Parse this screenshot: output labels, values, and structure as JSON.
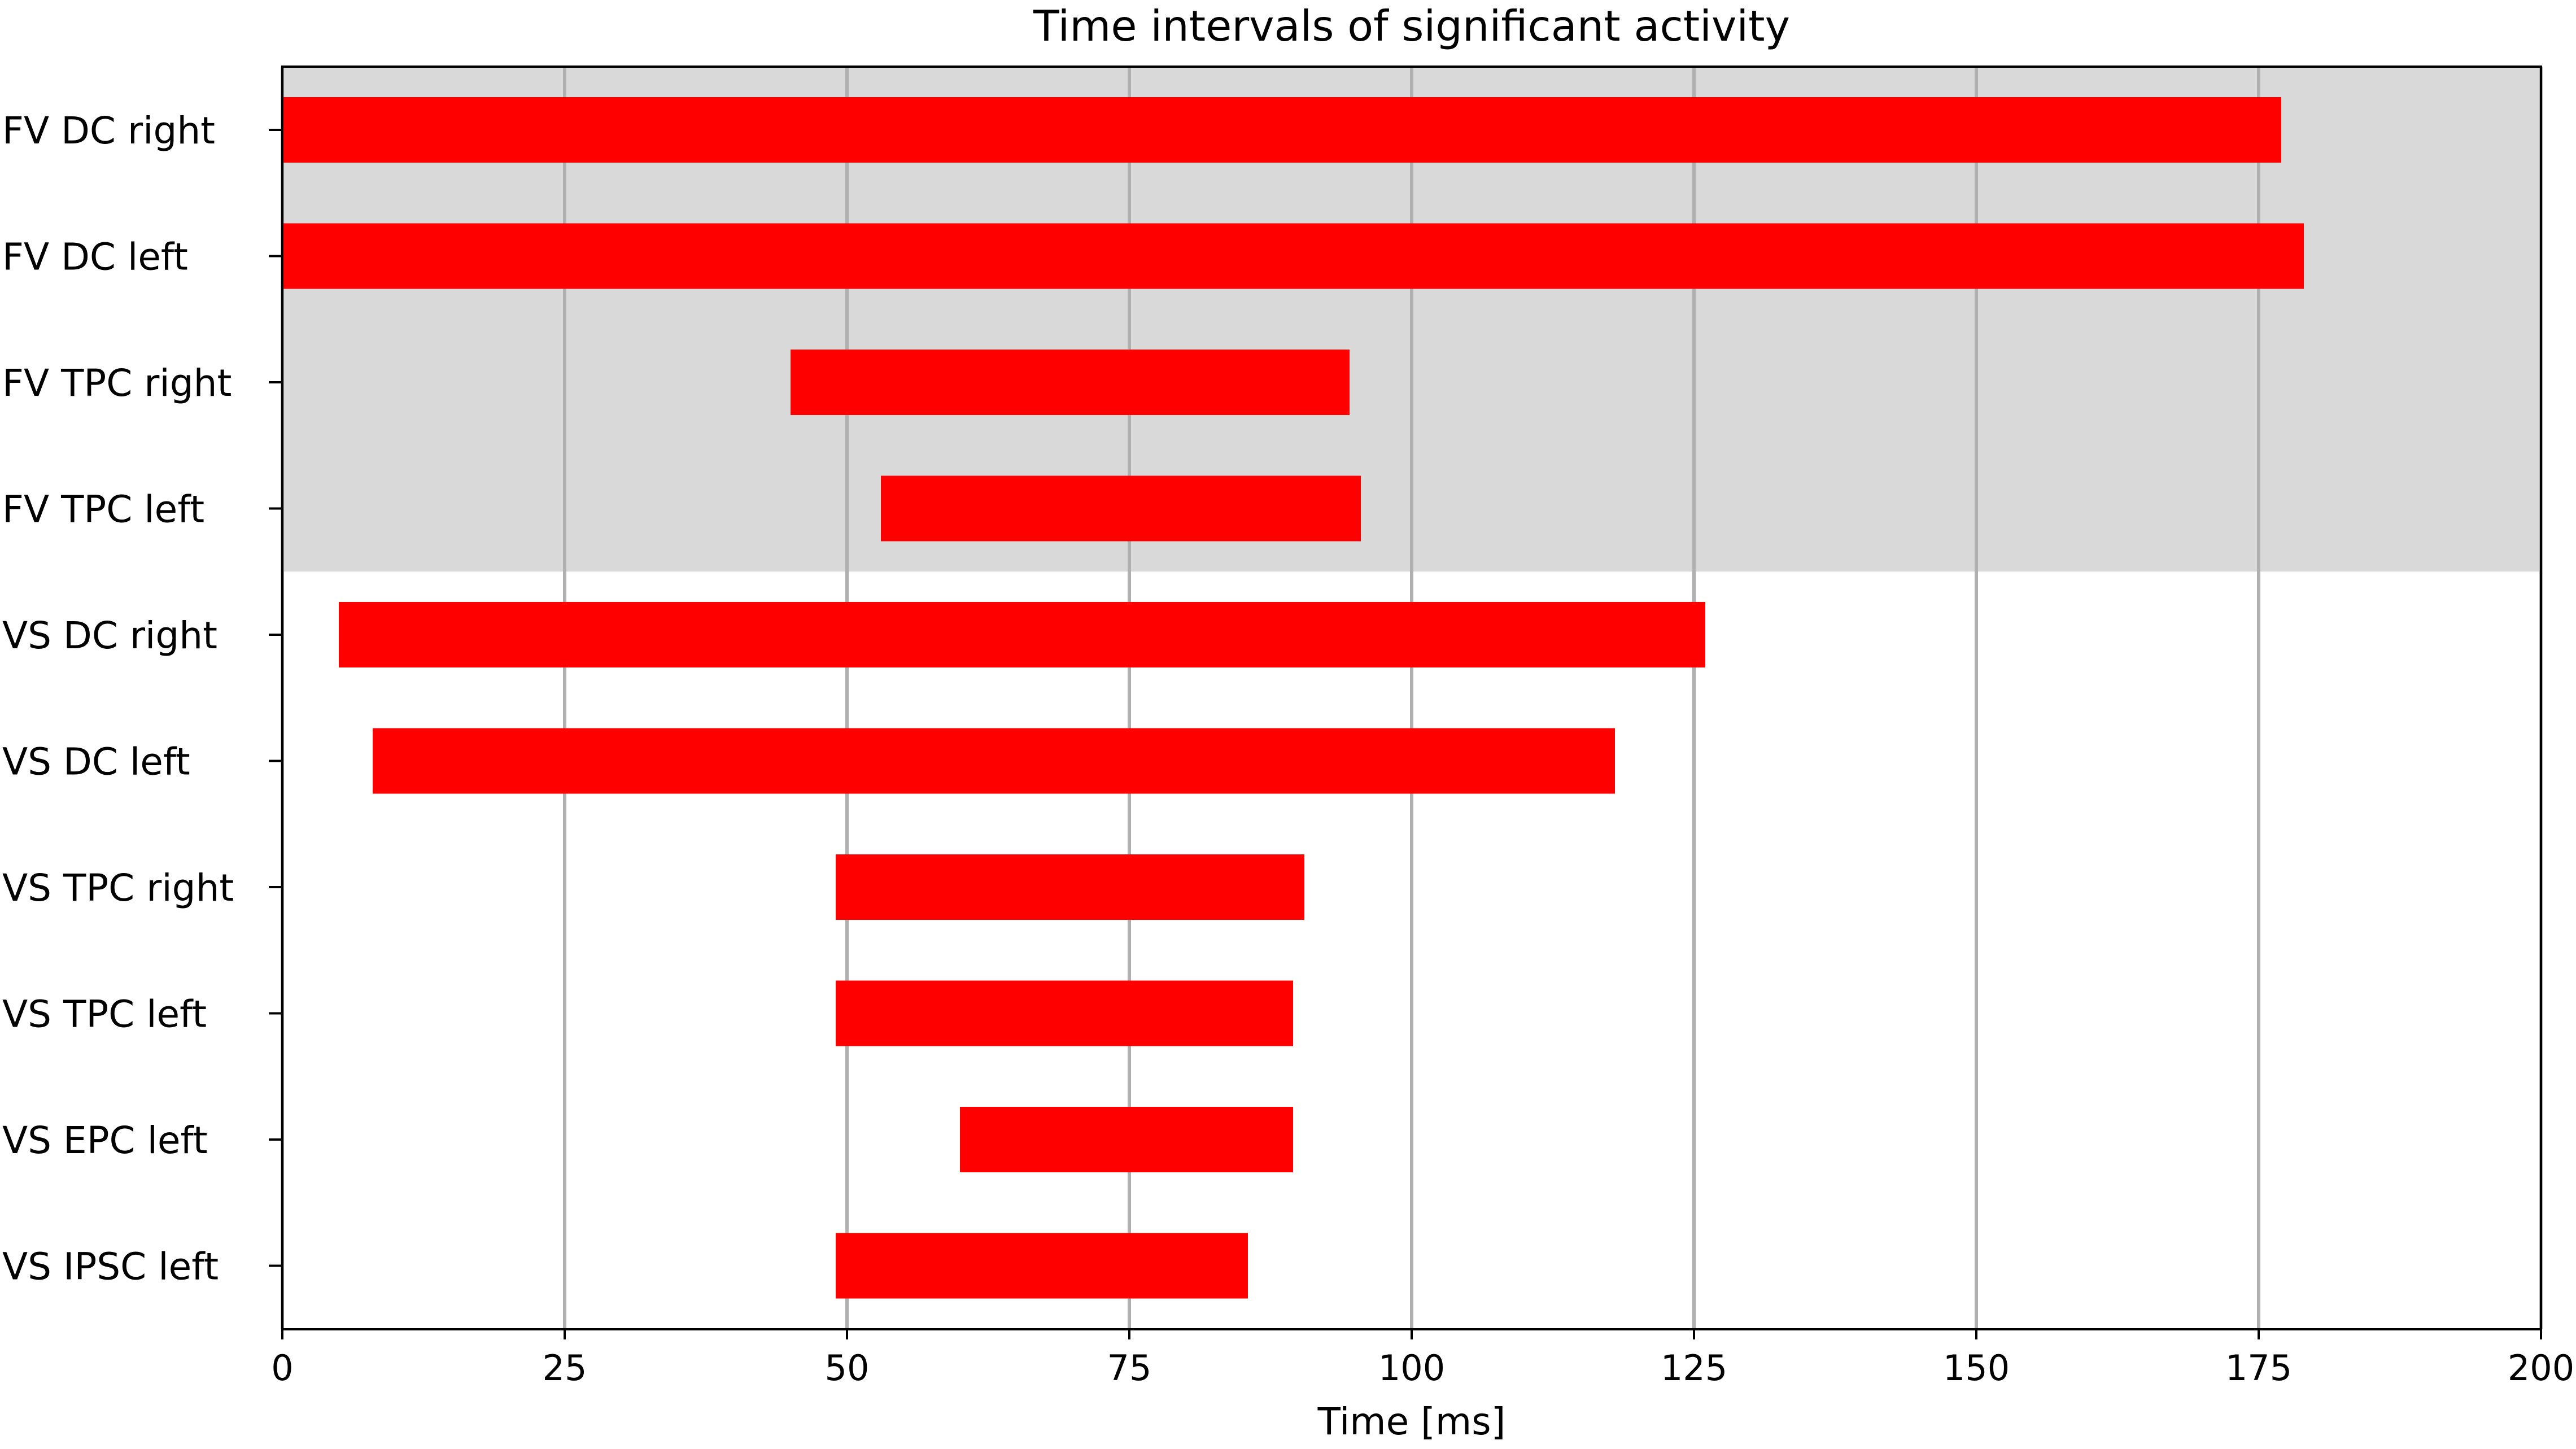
{
  "chart_data": {
    "type": "bar",
    "orientation": "horizontal",
    "title": "Time intervals of significant activity",
    "xlabel": "Time [ms]",
    "ylabel": "",
    "xlim": [
      0,
      200
    ],
    "xticks": [
      "0",
      "25",
      "50",
      "75",
      "100",
      "125",
      "150",
      "175",
      "200"
    ],
    "grid": "vertical",
    "categories": [
      "FV DC right",
      "FV DC left",
      "FV TPC right",
      "FV TPC left",
      "VS DC right",
      "VS DC left",
      "VS TPC right",
      "VS TPC left",
      "VS EPC left",
      "VS IPSC left"
    ],
    "intervals": [
      [
        0,
        177
      ],
      [
        0,
        179
      ],
      [
        45,
        94.5
      ],
      [
        53,
        95.5
      ],
      [
        5,
        126
      ],
      [
        8,
        118
      ],
      [
        49,
        90.5
      ],
      [
        49,
        89.5
      ],
      [
        60,
        89.5
      ],
      [
        49,
        85.5
      ]
    ],
    "shaded_categories": [
      "FV DC right",
      "FV DC left",
      "FV TPC right",
      "FV TPC left"
    ],
    "colors": {
      "bar": "#ff0000",
      "shade": "#d9d9d9",
      "grid": "#b0b0b0"
    }
  }
}
